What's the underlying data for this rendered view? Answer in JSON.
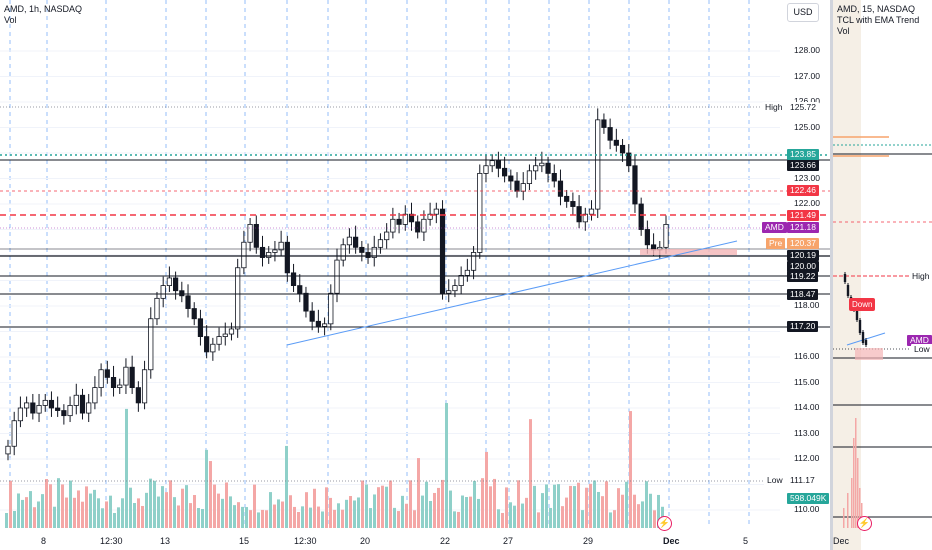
{
  "left_chart": {
    "legend_title": "AMD, 1h, NASDAQ",
    "legend_sub": "Vol",
    "currency_button": "USD",
    "price_ticks": [
      "128.00",
      "127.00",
      "126.00",
      "125.00",
      "123.00",
      "122.00",
      "118.00",
      "116.00",
      "115.00",
      "114.00",
      "113.00",
      "112.00",
      "110.00"
    ],
    "price_ticks_values": [
      128,
      127,
      126,
      125,
      123,
      122,
      118,
      116,
      115,
      114,
      113,
      112,
      110
    ],
    "x_ticks": [
      "8",
      "12:30",
      "13",
      "15",
      "12:30",
      "20",
      "22",
      "27",
      "29",
      "Dec",
      "5"
    ],
    "labels": {
      "high_tag": "High",
      "high_value": "125.72",
      "low_tag": "Low",
      "low_value": "111.17",
      "level_123_85": "123.85",
      "level_123_66": "123.66",
      "level_122_46": "122.46",
      "level_121_49": "121.49",
      "amd_tag": "AMD",
      "amd_value": "121.18",
      "pre_tag": "Pre",
      "pre_value": "120.37",
      "level_120_19": "120.19",
      "level_120_00": "120.00",
      "level_119_22": "119.22",
      "level_118_47": "118.47",
      "level_117_20": "117.20",
      "volume_value": "598.049K"
    },
    "colors": {
      "up": "#26a69a",
      "down": "#ef5350",
      "vol_up": "#8fd0c9",
      "vol_down": "#f4a7a6",
      "trend": "#5b9cf6",
      "teal_dotted": "#26a69a",
      "red_dashed": "#f23645"
    }
  },
  "right_chart": {
    "legend_title": "AMD, 15, NASDAQ",
    "legend_sub1": "TCL with EMA Trend",
    "legend_sub2": "Vol",
    "high_tag": "High",
    "low_tag": "Low",
    "amd_tag": "AMD",
    "down_badge": "Down",
    "x_tick": "Dec"
  },
  "icons": {
    "lightning": "⚡"
  }
}
